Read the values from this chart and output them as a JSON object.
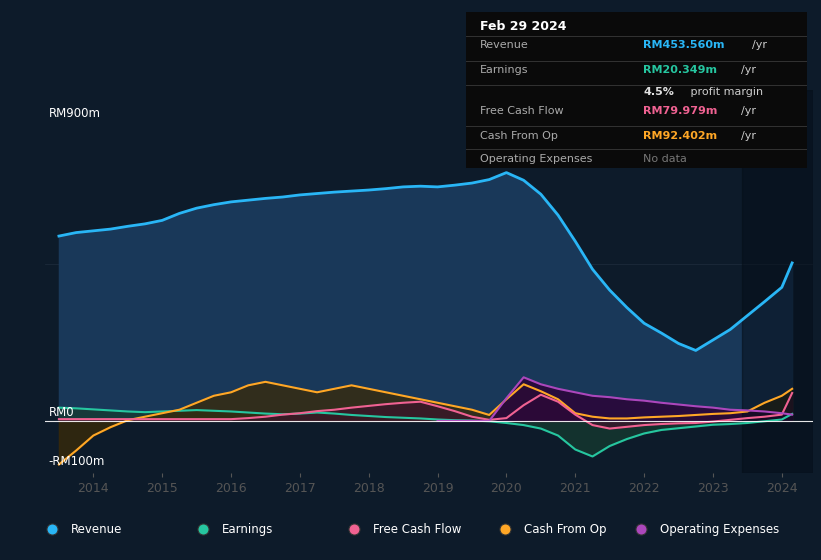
{
  "bg_color": "#0d1b2a",
  "plot_bg_color": "#0d1b2a",
  "y_label_top": "RM900m",
  "y_label_zero": "RM0",
  "y_label_neg": "-RM100m",
  "ylim": [
    -150,
    950
  ],
  "xlim": [
    2013.3,
    2024.45
  ],
  "info_box": {
    "date": "Feb 29 2024",
    "rows": [
      {
        "label": "Revenue",
        "value": "RM453.560m",
        "unit": "/yr",
        "color": "#29b6f6"
      },
      {
        "label": "Earnings",
        "value": "RM20.349m",
        "unit": "/yr",
        "color": "#26c6a0"
      },
      {
        "label": "",
        "value": "4.5%",
        "unit": " profit margin",
        "color": "#e0e0e0"
      },
      {
        "label": "Free Cash Flow",
        "value": "RM79.979m",
        "unit": "/yr",
        "color": "#f06292"
      },
      {
        "label": "Cash From Op",
        "value": "RM92.402m",
        "unit": "/yr",
        "color": "#ffa726"
      },
      {
        "label": "Operating Expenses",
        "value": "No data",
        "unit": "",
        "color": "#888888"
      }
    ]
  },
  "legend": [
    {
      "label": "Revenue",
      "color": "#29b6f6"
    },
    {
      "label": "Earnings",
      "color": "#26c6a0"
    },
    {
      "label": "Free Cash Flow",
      "color": "#f06292"
    },
    {
      "label": "Cash From Op",
      "color": "#ffa726"
    },
    {
      "label": "Operating Expenses",
      "color": "#ab47bc"
    }
  ],
  "revenue_x": [
    2013.5,
    2013.75,
    2014.0,
    2014.25,
    2014.5,
    2014.75,
    2015.0,
    2015.25,
    2015.5,
    2015.75,
    2016.0,
    2016.25,
    2016.5,
    2016.75,
    2017.0,
    2017.25,
    2017.5,
    2017.75,
    2018.0,
    2018.25,
    2018.5,
    2018.75,
    2019.0,
    2019.25,
    2019.5,
    2019.75,
    2020.0,
    2020.25,
    2020.5,
    2020.75,
    2021.0,
    2021.25,
    2021.5,
    2021.75,
    2022.0,
    2022.25,
    2022.5,
    2022.75,
    2023.0,
    2023.25,
    2023.5,
    2023.75,
    2024.0,
    2024.15
  ],
  "revenue_y": [
    530,
    540,
    545,
    550,
    558,
    565,
    575,
    595,
    610,
    620,
    628,
    633,
    638,
    642,
    648,
    652,
    656,
    659,
    662,
    666,
    671,
    673,
    671,
    676,
    682,
    692,
    712,
    690,
    650,
    590,
    515,
    435,
    375,
    325,
    280,
    252,
    222,
    202,
    232,
    262,
    302,
    342,
    383,
    453
  ],
  "earnings_x": [
    2013.5,
    2013.75,
    2014.0,
    2014.25,
    2014.5,
    2014.75,
    2015.0,
    2015.25,
    2015.5,
    2015.75,
    2016.0,
    2016.25,
    2016.5,
    2016.75,
    2017.0,
    2017.25,
    2017.5,
    2017.75,
    2018.0,
    2018.25,
    2018.5,
    2018.75,
    2019.0,
    2019.25,
    2019.5,
    2019.75,
    2020.0,
    2020.25,
    2020.5,
    2020.75,
    2021.0,
    2021.25,
    2021.5,
    2021.75,
    2022.0,
    2022.25,
    2022.5,
    2022.75,
    2023.0,
    2023.25,
    2023.5,
    2023.75,
    2024.0,
    2024.15
  ],
  "earnings_y": [
    38,
    36,
    33,
    30,
    27,
    25,
    27,
    29,
    31,
    29,
    27,
    24,
    21,
    19,
    21,
    24,
    21,
    17,
    14,
    11,
    9,
    7,
    4,
    2,
    1,
    -1,
    -6,
    -12,
    -22,
    -42,
    -82,
    -102,
    -72,
    -52,
    -36,
    -26,
    -21,
    -16,
    -11,
    -9,
    -6,
    -1,
    4,
    20
  ],
  "fcf_x": [
    2013.5,
    2013.75,
    2014.0,
    2014.25,
    2014.5,
    2014.75,
    2015.0,
    2015.25,
    2015.5,
    2015.75,
    2016.0,
    2016.25,
    2016.5,
    2016.75,
    2017.0,
    2017.25,
    2017.5,
    2017.75,
    2018.0,
    2018.25,
    2018.5,
    2018.75,
    2019.0,
    2019.25,
    2019.5,
    2019.75,
    2020.0,
    2020.25,
    2020.5,
    2020.75,
    2021.0,
    2021.25,
    2021.5,
    2021.75,
    2022.0,
    2022.25,
    2022.5,
    2022.75,
    2023.0,
    2023.25,
    2023.5,
    2023.75,
    2024.0,
    2024.15
  ],
  "fcf_y": [
    5,
    5,
    5,
    5,
    5,
    5,
    5,
    5,
    5,
    5,
    5,
    8,
    12,
    18,
    22,
    28,
    32,
    38,
    43,
    48,
    52,
    55,
    42,
    28,
    12,
    3,
    8,
    45,
    75,
    55,
    18,
    -12,
    -22,
    -17,
    -12,
    -9,
    -7,
    -6,
    -2,
    3,
    8,
    12,
    18,
    80
  ],
  "cfo_x": [
    2013.5,
    2013.75,
    2014.0,
    2014.25,
    2014.5,
    2014.75,
    2015.0,
    2015.25,
    2015.5,
    2015.75,
    2016.0,
    2016.25,
    2016.5,
    2016.75,
    2017.0,
    2017.25,
    2017.5,
    2017.75,
    2018.0,
    2018.25,
    2018.5,
    2018.75,
    2019.0,
    2019.25,
    2019.5,
    2019.75,
    2020.0,
    2020.25,
    2020.5,
    2020.75,
    2021.0,
    2021.25,
    2021.5,
    2021.75,
    2022.0,
    2022.25,
    2022.5,
    2022.75,
    2023.0,
    2023.25,
    2023.5,
    2023.75,
    2024.0,
    2024.15
  ],
  "cfo_y": [
    -125,
    -85,
    -42,
    -18,
    2,
    12,
    22,
    32,
    52,
    72,
    82,
    102,
    112,
    102,
    92,
    82,
    92,
    102,
    92,
    82,
    72,
    62,
    52,
    42,
    32,
    17,
    62,
    105,
    85,
    62,
    22,
    12,
    7,
    7,
    10,
    12,
    14,
    17,
    20,
    22,
    27,
    52,
    72,
    92
  ],
  "ope_x": [
    2019.0,
    2019.5,
    2019.75,
    2020.0,
    2020.25,
    2020.5,
    2020.75,
    2021.0,
    2021.25,
    2021.5,
    2021.75,
    2022.0,
    2022.25,
    2022.5,
    2022.75,
    2023.0,
    2023.25,
    2023.5,
    2023.75,
    2024.0,
    2024.15
  ],
  "ope_y": [
    0,
    0,
    0,
    65,
    125,
    105,
    92,
    82,
    72,
    68,
    62,
    58,
    52,
    47,
    42,
    38,
    32,
    30,
    27,
    22,
    18
  ],
  "rev_color": "#29b6f6",
  "rev_fill": "#1a3a5c",
  "earn_color": "#26c6a0",
  "earn_fill": "#163a30",
  "fcf_color": "#f06292",
  "fcf_fill": "#3a152a",
  "cfo_color": "#ffa726",
  "cfo_fill": "#3a2a08",
  "ope_color": "#ab47bc",
  "ope_fill": "#2a083a",
  "dark_overlay_start": 2023.42
}
